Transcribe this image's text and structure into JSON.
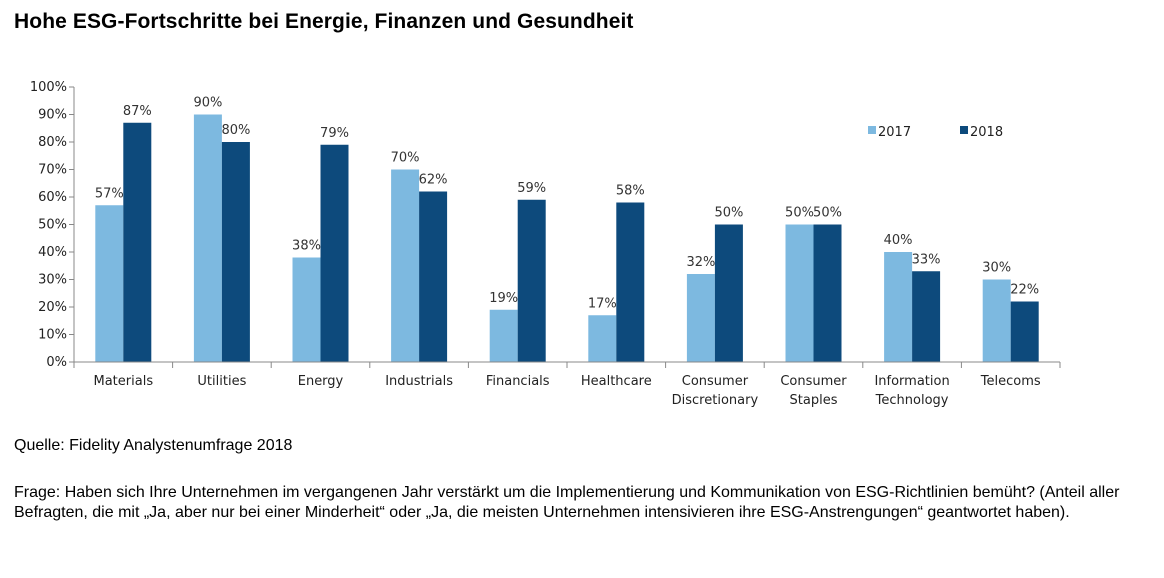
{
  "title": "Hohe ESG-Fortschritte bei Energie, Finanzen und Gesundheit",
  "source": "Quelle: Fidelity Analystenumfrage 2018",
  "question": "Frage: Haben sich Ihre Unternehmen im vergangenen Jahr verstärkt um die Implementierung und Kommunikation von ESG-Richtlinien bemüht? (Anteil aller Befragten, die mit  „Ja, aber nur bei einer Minderheit“ oder „Ja, die meisten Unternehmen intensivieren ihre ESG-Anstrengungen“ geantwortet haben).",
  "chart_data": {
    "type": "bar",
    "categories": [
      [
        "Materials"
      ],
      [
        "Utilities"
      ],
      [
        "Energy"
      ],
      [
        "Industrials"
      ],
      [
        "Financials"
      ],
      [
        "Healthcare"
      ],
      [
        "Consumer",
        "Discretionary"
      ],
      [
        "Consumer",
        "Staples"
      ],
      [
        "Information",
        "Technology"
      ],
      [
        "Telecoms"
      ]
    ],
    "series": [
      {
        "name": "2017",
        "color": "#7db9e0",
        "values": [
          57,
          90,
          38,
          70,
          19,
          17,
          32,
          50,
          40,
          30
        ]
      },
      {
        "name": "2018",
        "color": "#0d4a7c",
        "values": [
          87,
          80,
          79,
          62,
          59,
          58,
          50,
          50,
          33,
          22
        ]
      }
    ],
    "ylim": [
      0,
      100
    ],
    "yticks": [
      "0%",
      "10%",
      "20%",
      "30%",
      "40%",
      "50%",
      "60%",
      "70%",
      "80%",
      "90%",
      "100%"
    ],
    "value_suffix": "%",
    "grid": false,
    "legend_position": "top-right"
  }
}
